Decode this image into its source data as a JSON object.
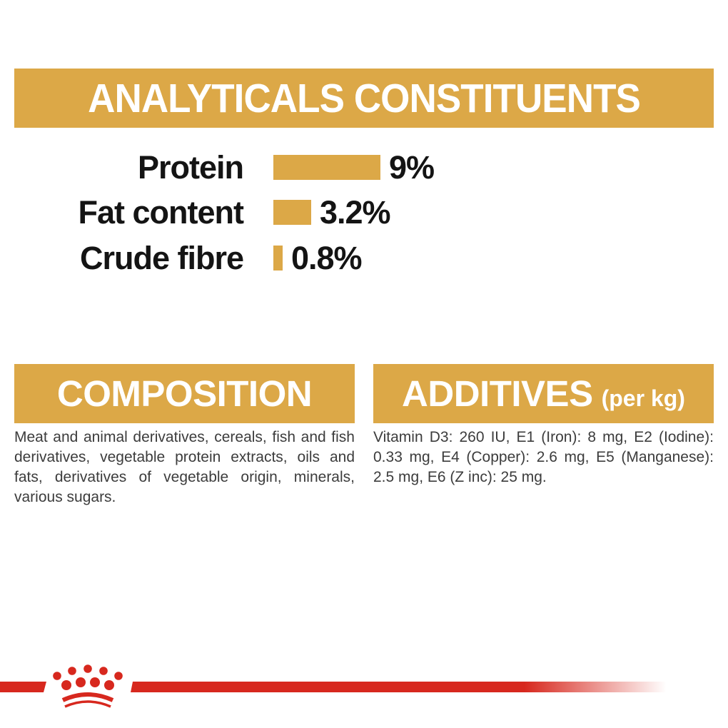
{
  "chart_data": {
    "type": "bar",
    "orientation": "horizontal",
    "title": "ANALYTICALS CONSTITUENTS",
    "categories": [
      "Protein",
      "Fat content",
      "Crude fibre"
    ],
    "values": [
      9,
      3.2,
      0.8
    ],
    "value_labels": [
      "9%",
      "3.2%",
      "0.8%"
    ],
    "unit": "%",
    "xlim": [
      0,
      9
    ],
    "grid": false,
    "legend": false,
    "bar_color": "#DCA847"
  },
  "sections": {
    "composition": {
      "heading": "COMPOSITION",
      "body": "Meat and animal derivatives, cereals, fish and fish derivatives, vegetable protein extracts, oils and fats, derivatives of vegetable origin, minerals, various sugars."
    },
    "additives": {
      "heading": "ADDITIVES",
      "heading_suffix": "(per kg)",
      "body": "Vitamin D3: 260 IU, E1 (Iron): 8 mg, E2 (Iodine): 0.33 mg, E4 (Copper): 2.6 mg, E5 (Manganese): 2.5 mg, E6 (Z inc): 25 mg."
    }
  },
  "branding": {
    "logo": "royal-canin-crown",
    "brand_gold": "#DCA847",
    "accent_red": "#D7281E"
  }
}
